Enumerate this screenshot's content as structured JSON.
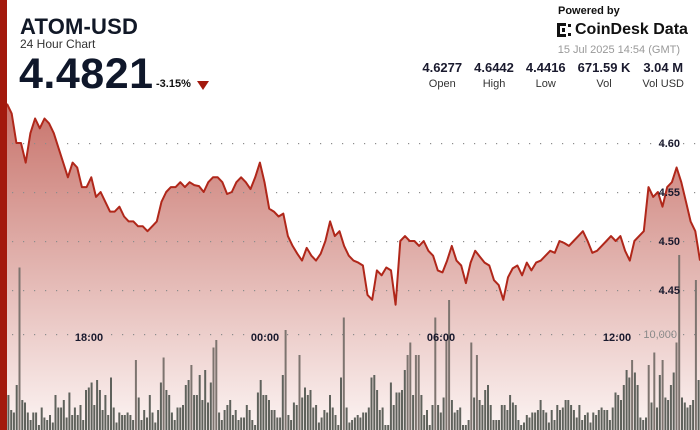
{
  "header": {
    "title": "ATOM-USD",
    "subtitle": "24 Hour Chart",
    "price": "4.4821",
    "change": "-3.15%",
    "change_direction": "down"
  },
  "branding": {
    "powered_by": "Powered by",
    "name": "CoinDesk Data",
    "timestamp": "15 Jul 2025 14:54 (GMT)"
  },
  "stats": [
    {
      "value": "4.6277",
      "label": "Open"
    },
    {
      "value": "4.6442",
      "label": "High"
    },
    {
      "value": "4.4416",
      "label": "Low"
    },
    {
      "value": "671.59 K",
      "label": "Vol"
    },
    {
      "value": "3.04 M",
      "label": "Vol USD"
    }
  ],
  "colors": {
    "accent": "#a3190d",
    "line": "#b0271a",
    "area_top": "#c8746c",
    "area_bottom": "#fbf1f0",
    "volume_bar": "#5f625c",
    "volume_bar_highlight": "#7d746f"
  },
  "chart_data": {
    "type": "line",
    "title": "ATOM-USD 24 Hour Chart",
    "xlabel": "",
    "ylabel": "",
    "x_ticks": [
      "18:00",
      "00:00",
      "06:00",
      "12:00"
    ],
    "y_ticks": [
      4.45,
      4.5,
      4.55,
      4.6
    ],
    "ylim": [
      4.41,
      4.65
    ],
    "grid": true,
    "volume_axis_label": "10,000",
    "series": [
      {
        "name": "Price",
        "values": [
          4.64,
          4.63,
          4.6,
          4.6,
          4.58,
          4.61,
          4.625,
          4.615,
          4.625,
          4.62,
          4.61,
          4.595,
          4.58,
          4.565,
          4.58,
          4.575,
          4.555,
          4.555,
          4.565,
          4.545,
          4.55,
          4.54,
          4.53,
          4.53,
          4.535,
          4.525,
          4.52,
          4.52,
          4.515,
          4.515,
          4.51,
          4.515,
          4.52,
          4.54,
          4.55,
          4.555,
          4.555,
          4.56,
          4.555,
          4.56,
          4.557,
          4.556,
          4.55,
          4.56,
          4.565,
          4.565,
          4.56,
          4.548,
          4.55,
          4.56,
          4.565,
          4.56,
          4.553,
          4.565,
          4.58,
          4.56,
          4.533,
          4.53,
          4.525,
          4.528,
          4.505,
          4.495,
          4.487,
          4.48,
          4.493,
          4.485,
          4.48,
          4.487,
          4.5,
          4.52,
          4.505,
          4.51,
          4.495,
          4.485,
          4.48,
          4.478,
          4.475,
          4.445,
          4.44,
          4.47,
          4.465,
          4.473,
          4.47,
          4.435,
          4.5,
          4.505,
          4.5,
          4.5,
          4.495,
          4.5,
          4.49,
          4.485,
          4.47,
          4.468,
          4.48,
          4.495,
          4.48,
          4.475,
          4.457,
          4.478,
          4.49,
          4.484,
          4.478,
          4.475,
          4.46,
          4.455,
          4.44,
          4.463,
          4.472,
          4.475,
          4.465,
          4.478,
          4.47,
          4.478,
          4.48,
          4.485,
          4.49,
          4.488,
          4.5,
          4.498,
          4.495,
          4.5,
          4.505,
          4.51,
          4.5,
          4.488,
          4.49,
          4.495,
          4.5,
          4.505,
          4.5,
          4.505,
          4.49,
          4.48,
          4.5,
          4.505,
          4.51,
          4.555,
          4.545,
          4.55,
          4.535,
          4.555,
          4.56,
          4.575,
          4.56,
          4.54,
          4.52,
          4.51,
          4.48
        ]
      }
    ],
    "volume": [
      14,
      8,
      7,
      18,
      65,
      12,
      11,
      7,
      4,
      7,
      7,
      2,
      9,
      5,
      4,
      6,
      3,
      14,
      9,
      9,
      12,
      5,
      15,
      6,
      9,
      6,
      10,
      4,
      16,
      17,
      19,
      10,
      20,
      16,
      8,
      14,
      6,
      21,
      9,
      3,
      7,
      6,
      6,
      7,
      6,
      4,
      28,
      13,
      4,
      8,
      5,
      14,
      7,
      3,
      8,
      19,
      29,
      16,
      14,
      7,
      4,
      9,
      9,
      10,
      18,
      20,
      26,
      14,
      14,
      22,
      12,
      24,
      11,
      19,
      33,
      36,
      7,
      4,
      8,
      10,
      12,
      6,
      8,
      4,
      5,
      5,
      10,
      8,
      4,
      2,
      15,
      20,
      14,
      14,
      12,
      8,
      8,
      5,
      5,
      22,
      40,
      6,
      4,
      11,
      10,
      30,
      13,
      17,
      14,
      16,
      9,
      10,
      3,
      5,
      8,
      7,
      14,
      9,
      6,
      2,
      21,
      45,
      9,
      3,
      4,
      5,
      6,
      5,
      7,
      7,
      9,
      21,
      22,
      16,
      8,
      9,
      2,
      2,
      19,
      10,
      15,
      15,
      16,
      24,
      30,
      35,
      14,
      30,
      30,
      14,
      6,
      8,
      2,
      10,
      45,
      10,
      7,
      13,
      36,
      52,
      12,
      7,
      8,
      9,
      2,
      2,
      4,
      35,
      13,
      30,
      12,
      10,
      16,
      18,
      10,
      4,
      4,
      4,
      10,
      10,
      8,
      14,
      11,
      10,
      4,
      2,
      3,
      6,
      5,
      7,
      7,
      8,
      12,
      8,
      7,
      3,
      8,
      4,
      10,
      8,
      9,
      12,
      12,
      10,
      8,
      5,
      10,
      4,
      6,
      7,
      3,
      7,
      6,
      8,
      9,
      8,
      8,
      4,
      9,
      15,
      14,
      12,
      18,
      24,
      21,
      28,
      23,
      18,
      5,
      4,
      5,
      26,
      11,
      31,
      9,
      22,
      28,
      13,
      12,
      18,
      23,
      35,
      70,
      13,
      11,
      9,
      10,
      12,
      60,
      20
    ]
  }
}
